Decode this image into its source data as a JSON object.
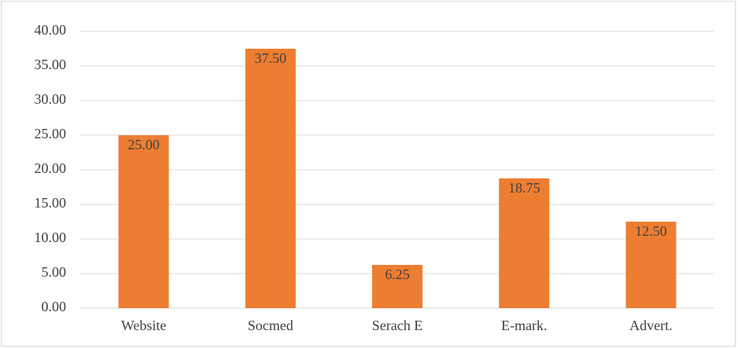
{
  "chart_data": {
    "type": "bar",
    "categories": [
      "Website",
      "Socmed",
      "Serach E",
      "E-mark.",
      "Advert."
    ],
    "values": [
      25,
      37.5,
      6.25,
      18.75,
      12.5
    ],
    "value_labels": [
      "25.00",
      "37.50",
      "6.25",
      "18.75",
      "12.50"
    ],
    "color": "#ed7d31",
    "ylim": [
      0,
      40
    ],
    "yticks": [
      {
        "value": 0,
        "label": "0.00"
      },
      {
        "value": 5,
        "label": "5.00"
      },
      {
        "value": 10,
        "label": "10.00"
      },
      {
        "value": 15,
        "label": "15.00"
      },
      {
        "value": 20,
        "label": "20.00"
      },
      {
        "value": 25,
        "label": "25.00"
      },
      {
        "value": 30,
        "label": "30.00"
      },
      {
        "value": 35,
        "label": "35.00"
      },
      {
        "value": 40,
        "label": "40.00"
      }
    ],
    "grid": true
  }
}
